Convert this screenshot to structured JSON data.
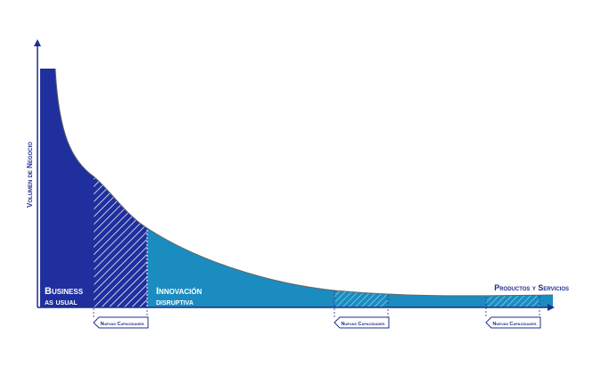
{
  "y_axis_label": "Volumen de Negocio",
  "x_axis_label": "Productos y Servicios",
  "regions": [
    {
      "label_lines": [
        "Business",
        "as usual"
      ]
    },
    {
      "label_lines": [
        "Innovación",
        "disruptiva"
      ]
    }
  ],
  "markers": [
    {
      "label": "Nuevas Capacidades"
    },
    {
      "label": "Nuevas Capacidades"
    },
    {
      "label": "Nuevas Capacidades"
    }
  ]
}
